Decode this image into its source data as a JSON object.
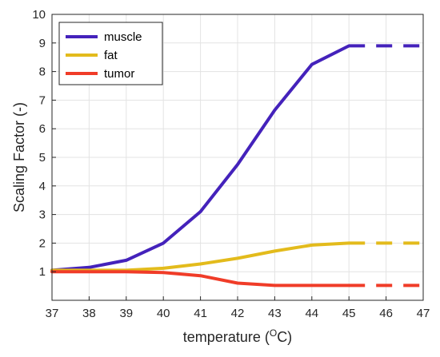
{
  "chart_data": {
    "type": "line",
    "xlabel": {
      "prefix": "temperature (",
      "sup": "O",
      "suffix": "C)"
    },
    "ylabel": "Scaling Factor (-)",
    "xlim": [
      37,
      47
    ],
    "ylim": [
      0,
      10
    ],
    "xticks": [
      37,
      38,
      39,
      40,
      41,
      42,
      43,
      44,
      45,
      46,
      47
    ],
    "yticks": [
      1,
      2,
      3,
      4,
      5,
      6,
      7,
      8,
      9,
      10
    ],
    "grid": true,
    "legend_position": "top-left",
    "x": [
      37,
      38,
      39,
      40,
      41,
      42,
      43,
      44,
      45
    ],
    "extension": {
      "style": "dashed",
      "x": [
        45,
        47
      ]
    },
    "series": [
      {
        "name": "muscle",
        "color": "#4422bb",
        "values": [
          1.05,
          1.15,
          1.4,
          2.0,
          3.1,
          4.75,
          6.65,
          8.25,
          8.9
        ],
        "extension_value": 8.9
      },
      {
        "name": "fat",
        "color": "#e3bb1c",
        "values": [
          1.05,
          1.05,
          1.05,
          1.12,
          1.27,
          1.47,
          1.72,
          1.93,
          2.0
        ],
        "extension_value": 2.0
      },
      {
        "name": "tumor",
        "color": "#f03c28",
        "values": [
          1.0,
          1.0,
          1.0,
          0.97,
          0.86,
          0.6,
          0.52,
          0.52,
          0.52
        ],
        "extension_value": 0.52
      }
    ]
  }
}
